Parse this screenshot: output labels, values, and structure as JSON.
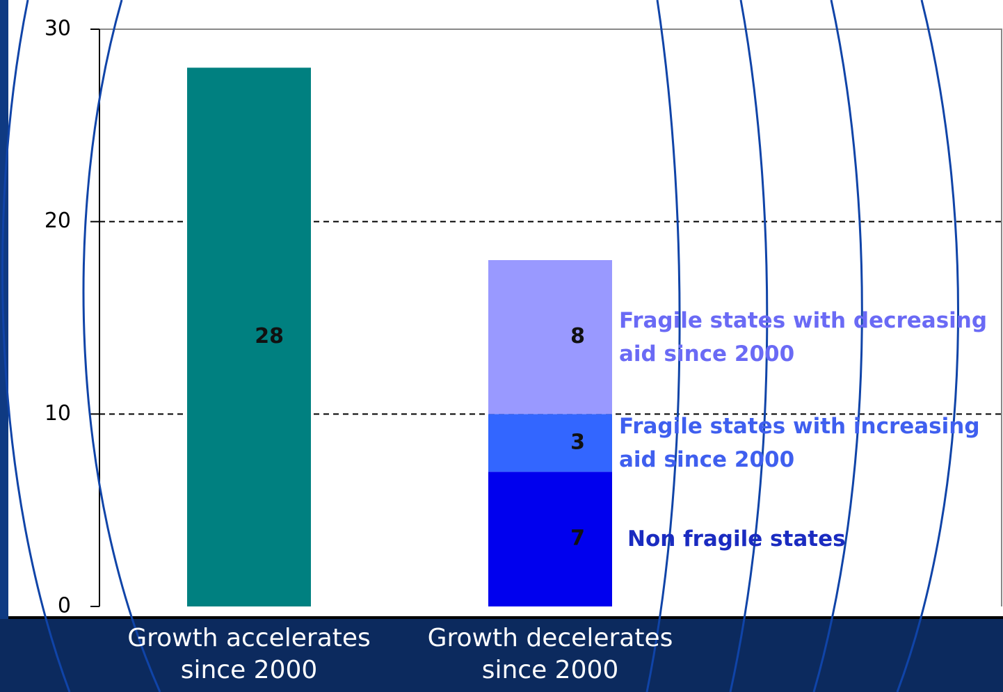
{
  "chart_data": {
    "type": "bar",
    "stacked": true,
    "categories": [
      "Growth accelerates since 2000",
      "Growth decelerates since 2000"
    ],
    "series": [
      {
        "values": [
          28,
          null
        ],
        "color": "#008080"
      },
      {
        "name": "Non fragile states",
        "values": [
          null,
          7
        ],
        "color": "#0000ee",
        "label_color": "#1a2bc0"
      },
      {
        "name": "Fragile states with increasing aid since 2000",
        "values": [
          null,
          3
        ],
        "color": "#3366ff",
        "label_color": "#3f5fef"
      },
      {
        "name": "Fragile states with decreasing aid since 2000",
        "values": [
          null,
          8
        ],
        "color": "#9999ff",
        "label_color": "#6a6af5"
      }
    ],
    "ylim": [
      0,
      30
    ],
    "yticks": [
      0,
      10,
      20,
      30
    ],
    "grid": true
  }
}
